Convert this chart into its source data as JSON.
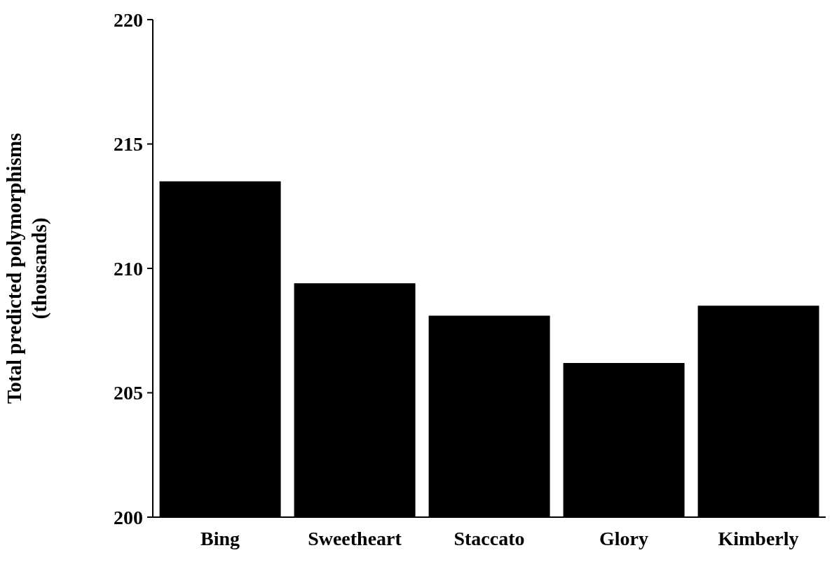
{
  "chart_data": {
    "type": "bar",
    "ylabel": "Total predicted polymorphisms (thousands)",
    "categories": [
      "Bing",
      "Sweetheart",
      "Staccato",
      "Glory",
      "Kimberly"
    ],
    "values": [
      213.5,
      209.4,
      208.1,
      206.2,
      208.5
    ],
    "color": "#000000",
    "ylim": [
      200,
      220
    ],
    "yticks": [
      200,
      205,
      210,
      215,
      220
    ],
    "grid": false,
    "legend": false
  }
}
